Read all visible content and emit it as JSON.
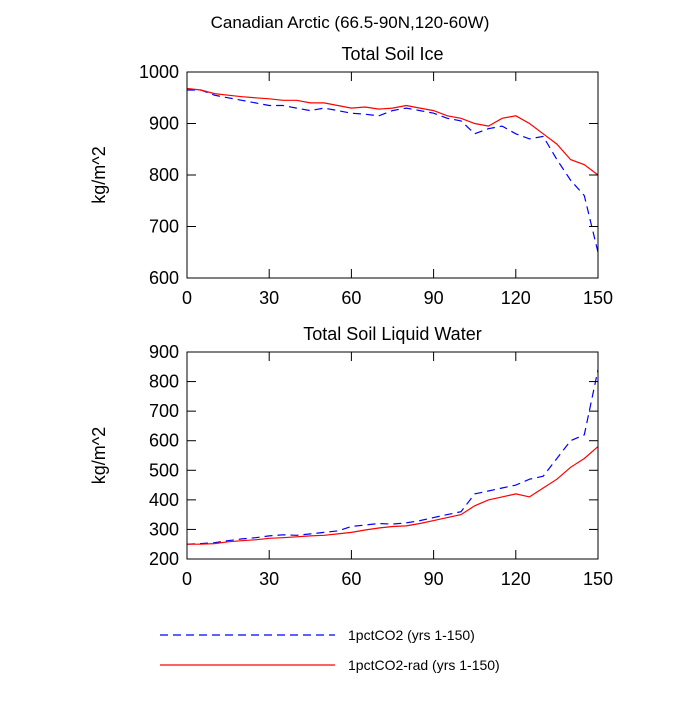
{
  "suptitle": "Canadian Arctic (66.5-90N,120-60W)",
  "chart_data": [
    {
      "type": "line",
      "title": "Total Soil Ice",
      "ylabel": "kg/m^2",
      "x": [
        0,
        5,
        10,
        15,
        20,
        25,
        30,
        35,
        40,
        45,
        50,
        55,
        60,
        65,
        70,
        75,
        80,
        85,
        90,
        95,
        100,
        105,
        110,
        115,
        120,
        125,
        130,
        135,
        140,
        145,
        150
      ],
      "series": [
        {
          "name": "1pctCO2 (yrs 1-150)",
          "color": "#0000ff",
          "line_style": "dashed",
          "values": [
            965,
            965,
            955,
            950,
            945,
            940,
            935,
            935,
            930,
            925,
            930,
            925,
            920,
            918,
            915,
            925,
            930,
            925,
            920,
            910,
            905,
            880,
            890,
            895,
            880,
            870,
            875,
            830,
            790,
            760,
            650
          ]
        },
        {
          "name": "1pctCO2-rad (yrs 1-150)",
          "color": "#ff0000",
          "line_style": "solid",
          "values": [
            968,
            965,
            958,
            955,
            952,
            950,
            948,
            945,
            945,
            940,
            940,
            935,
            930,
            932,
            928,
            930,
            935,
            930,
            925,
            915,
            910,
            900,
            895,
            910,
            915,
            900,
            880,
            860,
            830,
            820,
            800
          ]
        }
      ],
      "xlim": [
        0,
        150
      ],
      "xticks": [
        0,
        30,
        60,
        90,
        120,
        150
      ],
      "ylim": [
        600,
        1000
      ],
      "yticks": [
        600,
        700,
        800,
        900,
        1000
      ]
    },
    {
      "type": "line",
      "title": "Total Soil Liquid Water",
      "ylabel": "kg/m^2",
      "x": [
        0,
        5,
        10,
        15,
        20,
        25,
        30,
        35,
        40,
        45,
        50,
        55,
        60,
        65,
        70,
        75,
        80,
        85,
        90,
        95,
        100,
        105,
        110,
        115,
        120,
        125,
        130,
        135,
        140,
        145,
        150
      ],
      "series": [
        {
          "name": "1pctCO2 (yrs 1-150)",
          "color": "#0000ff",
          "line_style": "dashed",
          "values": [
            250,
            252,
            255,
            262,
            268,
            272,
            278,
            282,
            280,
            285,
            290,
            295,
            310,
            315,
            320,
            318,
            322,
            330,
            340,
            350,
            360,
            420,
            430,
            440,
            450,
            470,
            480,
            540,
            600,
            620,
            840
          ]
        },
        {
          "name": "1pctCO2-rad (yrs 1-150)",
          "color": "#ff0000",
          "line_style": "solid",
          "values": [
            250,
            250,
            252,
            258,
            262,
            265,
            270,
            272,
            275,
            278,
            280,
            285,
            290,
            298,
            305,
            310,
            312,
            320,
            330,
            340,
            350,
            380,
            400,
            410,
            420,
            410,
            440,
            470,
            510,
            540,
            580
          ]
        }
      ],
      "xlim": [
        0,
        150
      ],
      "xticks": [
        0,
        30,
        60,
        90,
        120,
        150
      ],
      "ylim": [
        200,
        900
      ],
      "yticks": [
        200,
        300,
        400,
        500,
        600,
        700,
        800,
        900
      ]
    }
  ]
}
